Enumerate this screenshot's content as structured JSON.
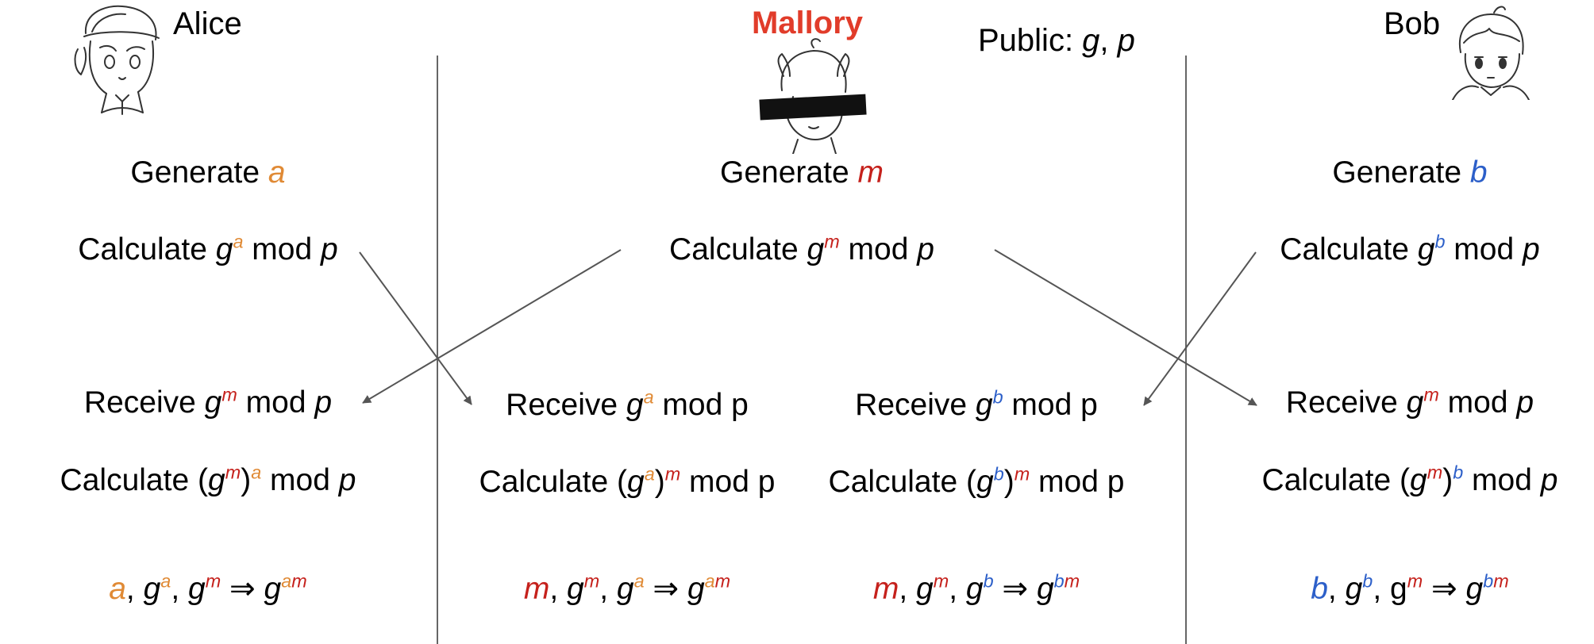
{
  "header": {
    "alice_name": "Alice",
    "bob_name": "Bob",
    "mallory_name": "Mallory",
    "public_label": "Public: ",
    "public_g": "g",
    "public_sep": ", ",
    "public_p": "p"
  },
  "colors": {
    "alice_secret": "#e08a35",
    "mallory_secret": "#c5211c",
    "bob_secret": "#2c5fc9",
    "mallory_title": "#e13c2a",
    "divider": "#555555",
    "arrow": "#555555"
  },
  "words": {
    "generate": "Generate ",
    "calculate": "Calculate ",
    "receive": "Receive ",
    "mod": " mod ",
    "p": "p",
    "g": "g",
    "open_paren": "(",
    "close_paren": ")",
    "comma": ", ",
    "implies": " ⇒ ",
    "gm_plain": "g"
  },
  "secrets": {
    "alice": "a",
    "mallory": "m",
    "bob": "b"
  },
  "results": {
    "am": "am",
    "bm": "bm"
  },
  "icons": {
    "alice": "alice-avatar-icon",
    "mallory": "mallory-avatar-icon",
    "bob": "bob-avatar-icon"
  }
}
